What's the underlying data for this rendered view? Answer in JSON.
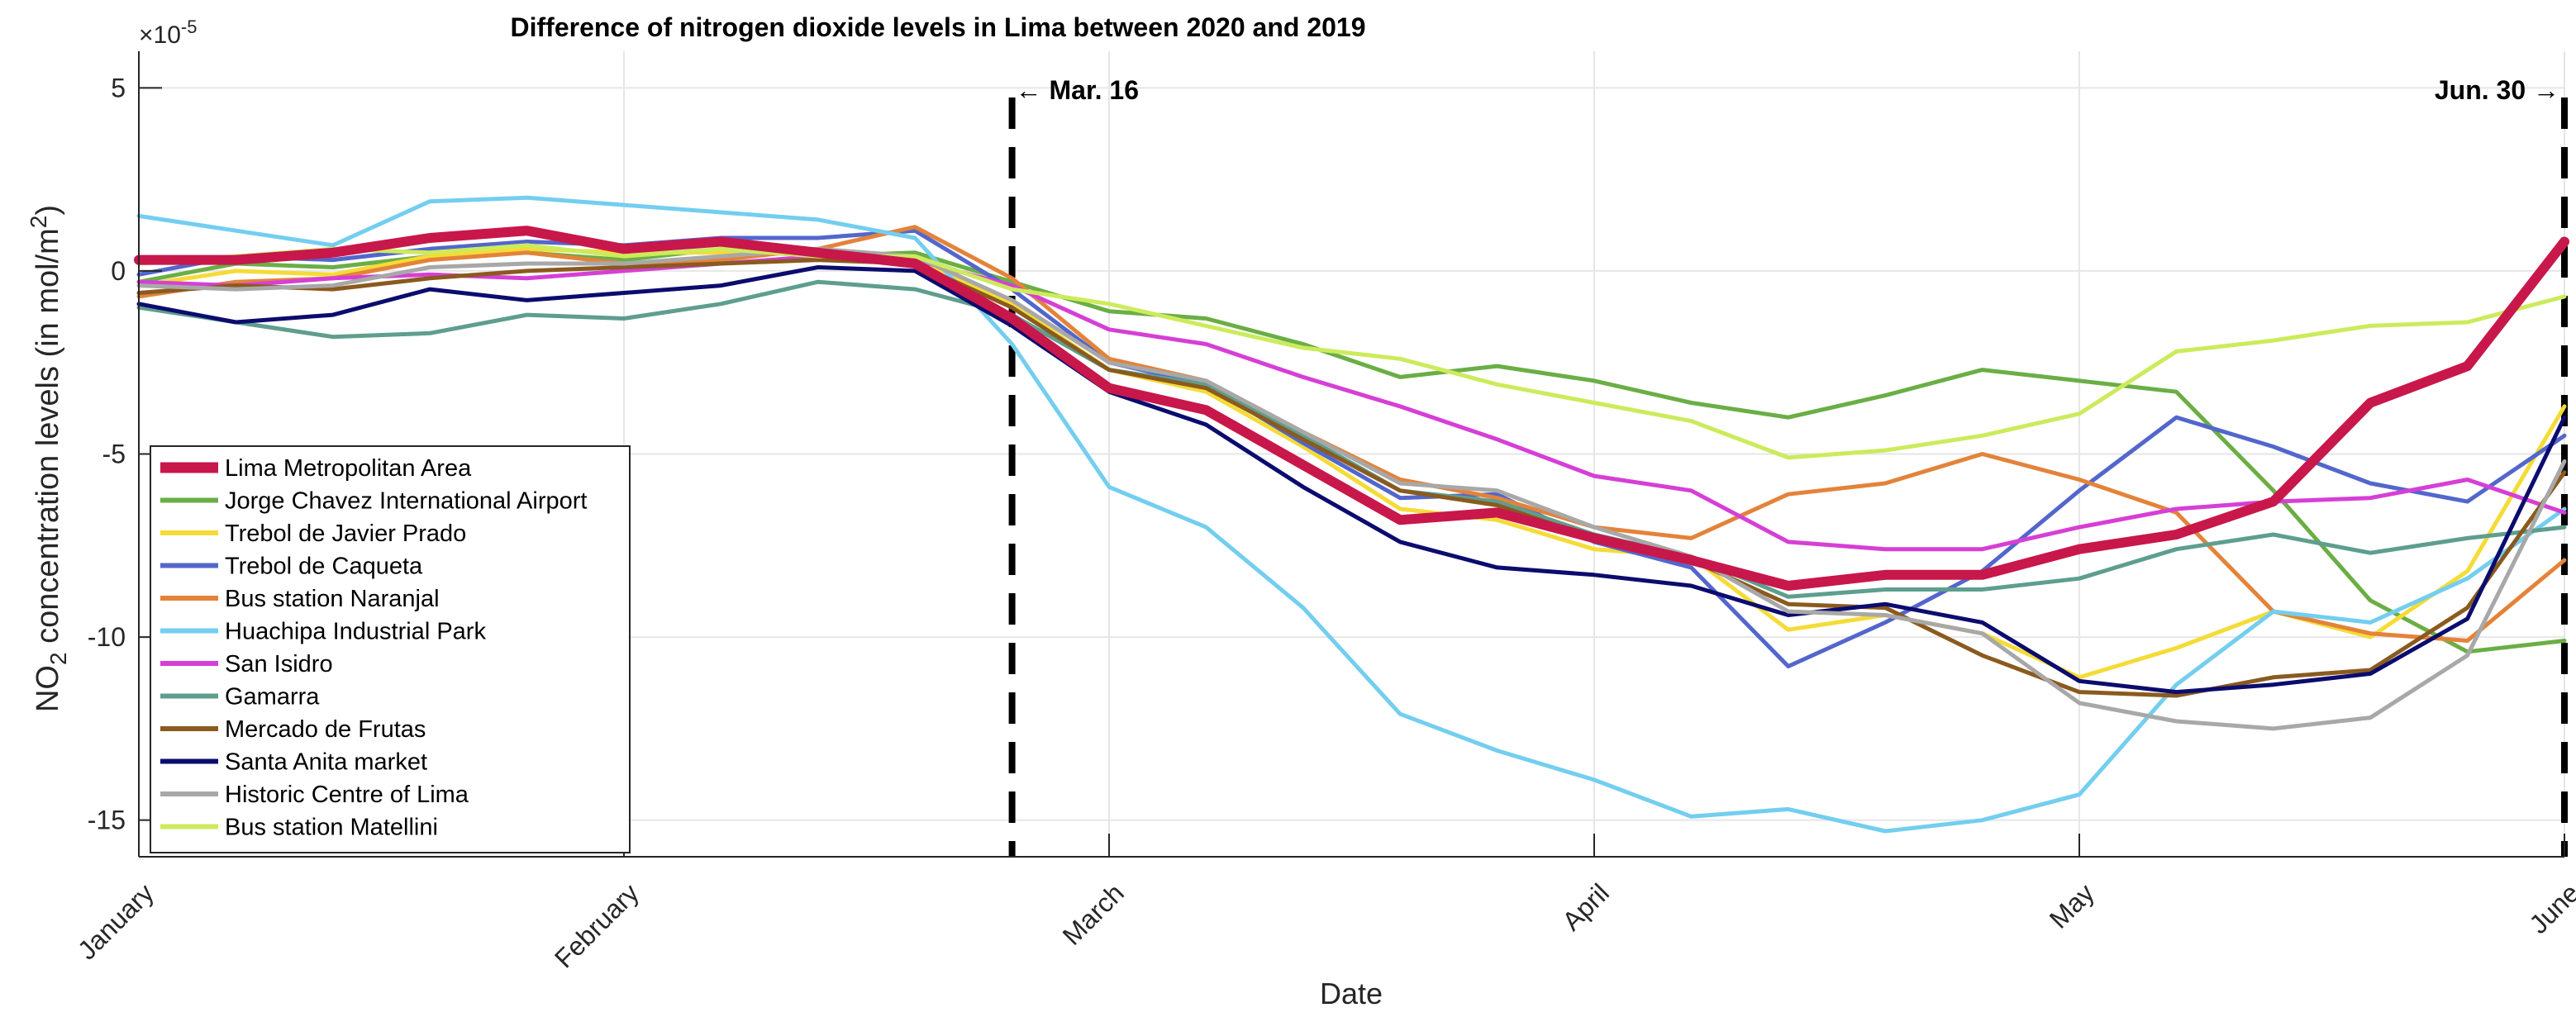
{
  "chart_data": {
    "type": "line",
    "title": "Difference of nitrogen dioxide levels in Lima between 2020 and 2019",
    "xlabel": "Date",
    "ylabel_main": "NO",
    "ylabel_sub": "2",
    "ylabel_rest": " concentration levels (in mol/m",
    "ylabel_sup": "2",
    "ylabel_end": ")",
    "y_exponent_base": "×10",
    "y_exponent_power": "-5",
    "xlim": [
      0,
      150
    ],
    "ylim": [
      -16,
      6
    ],
    "grid": true,
    "legend_position": "bottom-left",
    "x_ticks": [
      {
        "value": 0,
        "label": "January"
      },
      {
        "value": 30,
        "label": "February"
      },
      {
        "value": 60,
        "label": "March"
      },
      {
        "value": 90,
        "label": "April"
      },
      {
        "value": 120,
        "label": "May"
      },
      {
        "value": 150,
        "label": "June"
      }
    ],
    "y_ticks": [
      {
        "value": 5,
        "label": "5"
      },
      {
        "value": 0,
        "label": "0"
      },
      {
        "value": -5,
        "label": "-5"
      },
      {
        "value": -10,
        "label": "-10"
      },
      {
        "value": -15,
        "label": "-15"
      }
    ],
    "markers": [
      {
        "x": 54,
        "label": "← Mar. 16",
        "align": "left"
      },
      {
        "x": 150,
        "label": "Jun. 30 →",
        "align": "right"
      }
    ],
    "x": [
      0,
      6,
      12,
      18,
      24,
      30,
      36,
      42,
      48,
      54,
      60,
      66,
      72,
      78,
      84,
      90,
      96,
      102,
      108,
      114,
      120,
      126,
      132,
      138,
      144,
      150
    ],
    "series": [
      {
        "name": "Lima Metropolitan Area",
        "color": "#C8174A",
        "width": 12,
        "values": [
          0.3,
          0.3,
          0.5,
          0.9,
          1.1,
          0.6,
          0.8,
          0.5,
          0.2,
          -1.3,
          -3.2,
          -3.8,
          -5.3,
          -6.8,
          -6.6,
          -7.3,
          -7.9,
          -8.6,
          -8.3,
          -8.3,
          -7.6,
          -7.2,
          -6.3,
          -3.6,
          -2.6,
          0.8
        ]
      },
      {
        "name": "Jorge Chavez International Airport",
        "color": "#6AAE45",
        "width": 5,
        "values": [
          -0.3,
          0.2,
          0.1,
          0.4,
          0.5,
          0.3,
          0.6,
          0.4,
          0.5,
          -0.3,
          -1.1,
          -1.3,
          -2.0,
          -2.9,
          -2.6,
          -3.0,
          -3.6,
          -4.0,
          -3.4,
          -2.7,
          -3.0,
          -3.3,
          -6.0,
          -9.0,
          -10.4,
          -10.1
        ]
      },
      {
        "name": "Trebol de Javier Prado",
        "color": "#F5DB37",
        "width": 5,
        "values": [
          -0.4,
          0.0,
          -0.1,
          0.4,
          0.6,
          0.5,
          0.5,
          0.6,
          0.3,
          -0.9,
          -2.7,
          -3.3,
          -4.8,
          -6.5,
          -6.8,
          -7.6,
          -7.8,
          -9.8,
          -9.4,
          -9.9,
          -11.1,
          -10.3,
          -9.3,
          -10.0,
          -8.2,
          -3.7
        ]
      },
      {
        "name": "Trebol de Caqueta",
        "color": "#5366CC",
        "width": 5,
        "values": [
          -0.1,
          0.4,
          0.3,
          0.6,
          0.8,
          0.7,
          0.9,
          0.9,
          1.1,
          -0.5,
          -2.5,
          -3.1,
          -4.7,
          -6.2,
          -6.1,
          -7.4,
          -8.1,
          -10.8,
          -9.6,
          -8.2,
          -6.0,
          -4.0,
          -4.8,
          -5.8,
          -6.3,
          -4.5
        ]
      },
      {
        "name": "Bus station Naranjal",
        "color": "#E3833A",
        "width": 5,
        "values": [
          -0.7,
          -0.3,
          -0.2,
          0.3,
          0.5,
          0.2,
          0.3,
          0.6,
          1.2,
          -0.2,
          -2.4,
          -3.0,
          -4.4,
          -5.7,
          -6.2,
          -7.0,
          -7.3,
          -6.1,
          -5.8,
          -5.0,
          -5.7,
          -6.6,
          -9.3,
          -9.9,
          -10.1,
          -7.9
        ]
      },
      {
        "name": "Huachipa Industrial Park",
        "color": "#73CEEF",
        "width": 5,
        "values": [
          1.5,
          1.1,
          0.7,
          1.9,
          2.0,
          1.8,
          1.6,
          1.4,
          0.9,
          -2.0,
          -5.9,
          -7.0,
          -9.2,
          -12.1,
          -13.1,
          -13.9,
          -14.9,
          -14.7,
          -15.3,
          -15.0,
          -14.3,
          -11.3,
          -9.3,
          -9.6,
          -8.4,
          -6.5
        ]
      },
      {
        "name": "San Isidro",
        "color": "#D63FD6",
        "width": 5,
        "values": [
          -0.3,
          -0.4,
          -0.2,
          -0.1,
          -0.2,
          0.0,
          0.2,
          0.4,
          0.3,
          -0.4,
          -1.6,
          -2.0,
          -2.9,
          -3.7,
          -4.6,
          -5.6,
          -6.0,
          -7.4,
          -7.6,
          -7.6,
          -7.0,
          -6.5,
          -6.3,
          -6.2,
          -5.7,
          -6.6
        ]
      },
      {
        "name": "Gamarra",
        "color": "#5E9E8E",
        "width": 5,
        "values": [
          -1.0,
          -1.4,
          -1.8,
          -1.7,
          -1.2,
          -1.3,
          -0.9,
          -0.3,
          -0.5,
          -1.2,
          -2.7,
          -3.1,
          -4.5,
          -6.0,
          -6.3,
          -7.2,
          -7.8,
          -8.9,
          -8.7,
          -8.7,
          -8.4,
          -7.6,
          -7.2,
          -7.7,
          -7.3,
          -7.0
        ]
      },
      {
        "name": "Mercado de Frutas",
        "color": "#8A5A1E",
        "width": 5,
        "values": [
          -0.6,
          -0.4,
          -0.5,
          -0.2,
          0.0,
          0.1,
          0.2,
          0.3,
          0.2,
          -1.0,
          -2.7,
          -3.2,
          -4.6,
          -6.0,
          -6.4,
          -7.3,
          -7.9,
          -9.1,
          -9.2,
          -10.5,
          -11.5,
          -11.6,
          -11.1,
          -10.9,
          -9.2,
          -5.5
        ]
      },
      {
        "name": "Santa Anita market",
        "color": "#0B0C6E",
        "width": 5,
        "values": [
          -0.9,
          -1.4,
          -1.2,
          -0.5,
          -0.8,
          -0.6,
          -0.4,
          0.1,
          0.0,
          -1.5,
          -3.3,
          -4.2,
          -5.9,
          -7.4,
          -8.1,
          -8.3,
          -8.6,
          -9.4,
          -9.1,
          -9.6,
          -11.2,
          -11.5,
          -11.3,
          -11.0,
          -9.5,
          -4.0
        ]
      },
      {
        "name": "Historic Centre of Lima",
        "color": "#A8A8A8",
        "width": 5,
        "values": [
          -0.4,
          -0.5,
          -0.4,
          0.1,
          0.2,
          0.2,
          0.4,
          0.6,
          0.4,
          -0.8,
          -2.5,
          -3.0,
          -4.4,
          -5.8,
          -6.0,
          -7.0,
          -7.8,
          -9.3,
          -9.4,
          -9.9,
          -11.8,
          -12.3,
          -12.5,
          -12.2,
          -10.5,
          -5.2
        ]
      },
      {
        "name": "Bus station Matellini",
        "color": "#CCEB5C",
        "width": 5,
        "values": [
          0.2,
          0.4,
          0.6,
          0.5,
          0.7,
          0.4,
          0.6,
          0.4,
          0.4,
          -0.5,
          -0.9,
          -1.5,
          -2.1,
          -2.4,
          -3.1,
          -3.6,
          -4.1,
          -5.1,
          -4.9,
          -4.5,
          -3.9,
          -2.2,
          -1.9,
          -1.5,
          -1.4,
          -0.7
        ]
      }
    ]
  }
}
